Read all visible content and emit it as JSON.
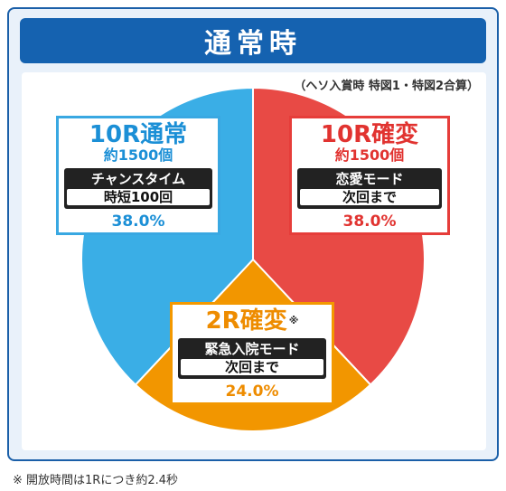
{
  "header": {
    "title": "通常時"
  },
  "note": "（ヘソ入賞時 特図1・特図2合算）",
  "chart_data": {
    "type": "pie",
    "slices": [
      {
        "title": "10R確変",
        "count": "約1500個",
        "mode_label": "恋愛モード",
        "mode_value": "次回まで",
        "percent_label": "38.0%",
        "value": 38.0,
        "color": "#e84a45"
      },
      {
        "title": "2R確変",
        "mark": "※",
        "mode_label": "緊急入院モード",
        "mode_value": "次回まで",
        "percent_label": "24.0%",
        "value": 24.0,
        "color": "#f29600"
      },
      {
        "title": "10R通常",
        "count": "約1500個",
        "mode_label": "チャンスタイム",
        "mode_value": "時短100回",
        "percent_label": "38.0%",
        "value": 38.0,
        "color": "#3aaee6"
      }
    ]
  },
  "footnote": "※ 開放時間は1Rにつき約2.4秒"
}
